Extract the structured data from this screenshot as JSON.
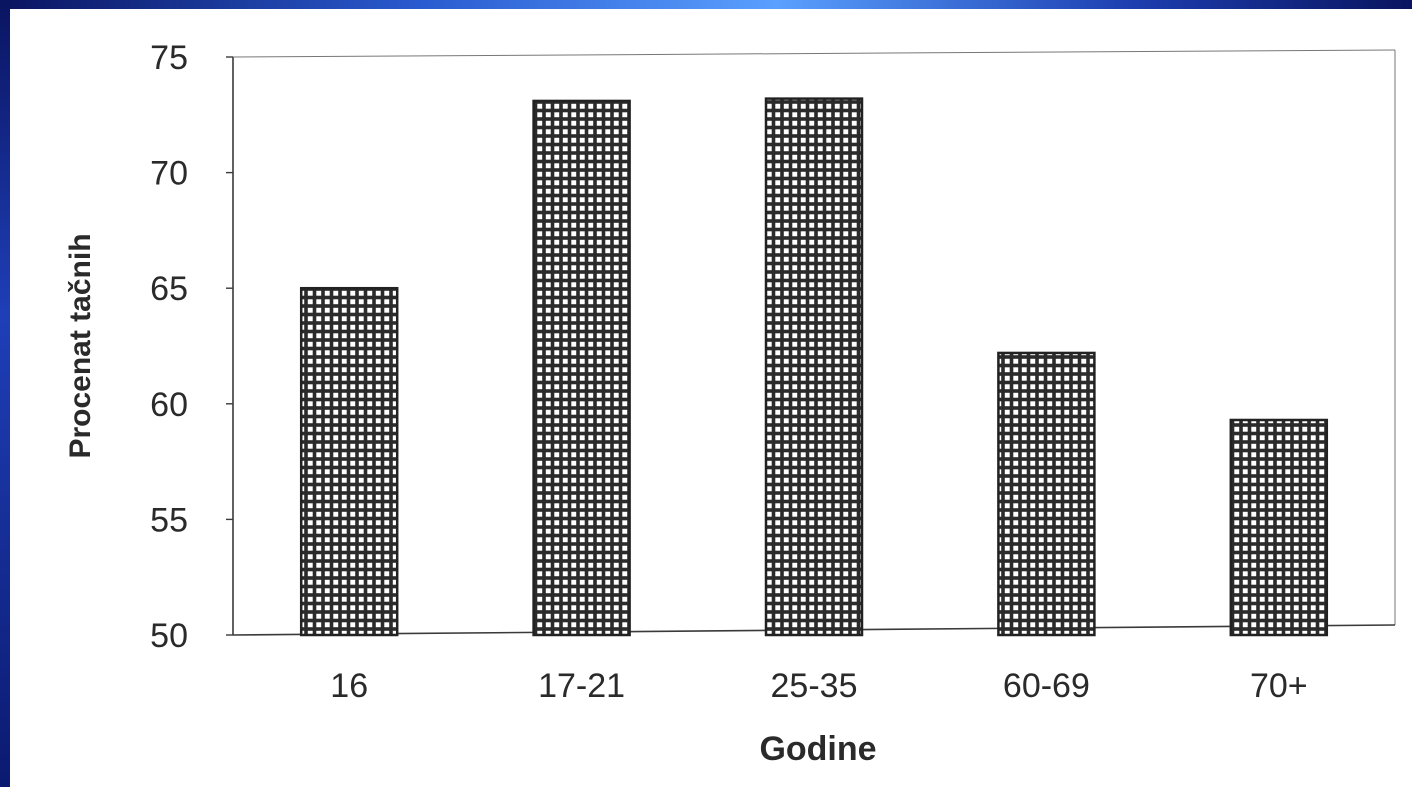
{
  "colors": {
    "frame": "#0a1a6e",
    "paper": "#ffffff",
    "bar_fill": "#2b2b2b",
    "text": "#2a2a2a"
  },
  "chart_data": {
    "type": "bar",
    "categories": [
      "16",
      "17-21",
      "25-35",
      "60-69",
      "70+"
    ],
    "values": [
      65,
      73.1,
      73.2,
      62.2,
      59.3
    ],
    "title": "",
    "xlabel": "Godine",
    "ylabel": "Procenat tačnih",
    "ylim": [
      50,
      75
    ],
    "yticks": [
      "50",
      "55",
      "60",
      "65",
      "70",
      "75"
    ],
    "grid": false,
    "legend": "none",
    "bar_pattern": "checkered-grid"
  }
}
